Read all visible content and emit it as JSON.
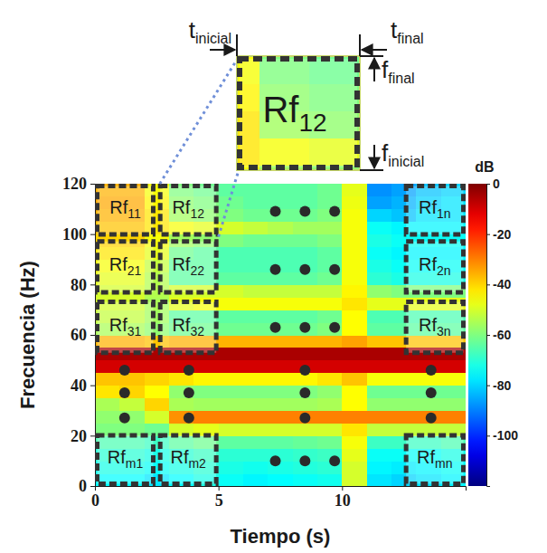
{
  "chart_data": {
    "type": "heatmap",
    "x_label": "Tiempo (s)",
    "y_label": "Frecuencia (Hz)",
    "xlim": [
      0,
      15
    ],
    "xticks": [
      0,
      5,
      10
    ],
    "ylim": [
      0,
      120
    ],
    "yticks": [
      0,
      20,
      40,
      60,
      80,
      100,
      120
    ],
    "x_bins": [
      0,
      1,
      2,
      3,
      4,
      5,
      6,
      7,
      8,
      9,
      10,
      11,
      12,
      13,
      14,
      15
    ],
    "y_bins": [
      0,
      5,
      10,
      15,
      20,
      25,
      30,
      35,
      40,
      45,
      50,
      55,
      60,
      65,
      70,
      75,
      80,
      85,
      90,
      95,
      100,
      105,
      110,
      115,
      120
    ],
    "z": [
      [
        -75,
        -75,
        -78,
        -75,
        -72,
        -74,
        -76,
        -75,
        -74,
        -73,
        -50,
        -78,
        -80,
        -78,
        -76
      ],
      [
        -72,
        -72,
        -74,
        -72,
        -70,
        -72,
        -73,
        -72,
        -71,
        -70,
        -50,
        -76,
        -77,
        -76,
        -74
      ],
      [
        -70,
        -70,
        -72,
        -70,
        -68,
        -70,
        -70,
        -70,
        -69,
        -68,
        -48,
        -74,
        -74,
        -74,
        -72
      ],
      [
        -66,
        -66,
        -68,
        -64,
        -62,
        -64,
        -64,
        -64,
        -63,
        -62,
        -46,
        -68,
        -68,
        -68,
        -66
      ],
      [
        -60,
        -60,
        -62,
        -50,
        -48,
        -50,
        -50,
        -50,
        -50,
        -50,
        -42,
        -52,
        -52,
        -52,
        -52
      ],
      [
        -58,
        -58,
        -50,
        -32,
        -30,
        -30,
        -30,
        -30,
        -30,
        -30,
        -30,
        -30,
        -30,
        -30,
        -30
      ],
      [
        -55,
        -52,
        -40,
        -55,
        -56,
        -56,
        -56,
        -56,
        -56,
        -55,
        -45,
        -58,
        -58,
        -58,
        -58
      ],
      [
        -42,
        -40,
        -45,
        -58,
        -60,
        -60,
        -60,
        -60,
        -60,
        -58,
        -45,
        -62,
        -62,
        -62,
        -62
      ],
      [
        -38,
        -38,
        -40,
        -42,
        -44,
        -44,
        -44,
        -44,
        -44,
        -42,
        -38,
        -46,
        -46,
        -46,
        -46
      ],
      [
        -10,
        -10,
        -10,
        -10,
        -10,
        -10,
        -10,
        -10,
        -10,
        -10,
        -10,
        -10,
        -10,
        -10,
        -10
      ],
      [
        -5,
        -5,
        -5,
        -5,
        -5,
        -5,
        -5,
        -5,
        -5,
        -5,
        -5,
        -5,
        -5,
        -5,
        -5
      ],
      [
        -36,
        -36,
        -38,
        -36,
        -36,
        -36,
        -36,
        -36,
        -36,
        -36,
        -34,
        -38,
        -38,
        -38,
        -38
      ],
      [
        -55,
        -55,
        -58,
        -62,
        -62,
        -62,
        -62,
        -62,
        -62,
        -60,
        -45,
        -64,
        -64,
        -64,
        -64
      ],
      [
        -52,
        -52,
        -56,
        -64,
        -64,
        -64,
        -64,
        -64,
        -64,
        -62,
        -45,
        -66,
        -66,
        -66,
        -66
      ],
      [
        -50,
        -50,
        -55,
        -48,
        -46,
        -46,
        -46,
        -46,
        -46,
        -46,
        -42,
        -48,
        -48,
        -48,
        -48
      ],
      [
        -50,
        -50,
        -54,
        -50,
        -50,
        -50,
        -52,
        -52,
        -52,
        -52,
        -44,
        -58,
        -60,
        -60,
        -60
      ],
      [
        -48,
        -48,
        -54,
        -64,
        -64,
        -64,
        -64,
        -64,
        -64,
        -62,
        -46,
        -70,
        -72,
        -72,
        -72
      ],
      [
        -46,
        -46,
        -52,
        -64,
        -64,
        -66,
        -66,
        -66,
        -66,
        -64,
        -46,
        -72,
        -74,
        -74,
        -74
      ],
      [
        -42,
        -42,
        -48,
        -62,
        -64,
        -66,
        -66,
        -66,
        -66,
        -64,
        -46,
        -74,
        -76,
        -76,
        -76
      ],
      [
        -40,
        -40,
        -46,
        -56,
        -58,
        -60,
        -62,
        -62,
        -62,
        -60,
        -46,
        -72,
        -74,
        -74,
        -74
      ],
      [
        -38,
        -38,
        -42,
        -46,
        -48,
        -50,
        -52,
        -54,
        -56,
        -56,
        -46,
        -74,
        -76,
        -76,
        -76
      ],
      [
        -36,
        -36,
        -42,
        -56,
        -58,
        -60,
        -62,
        -62,
        -62,
        -60,
        -46,
        -80,
        -82,
        -78,
        -78
      ],
      [
        -35,
        -35,
        -44,
        -58,
        -60,
        -62,
        -64,
        -64,
        -64,
        -62,
        -47,
        -86,
        -84,
        -80,
        -78
      ],
      [
        -36,
        -36,
        -46,
        -60,
        -62,
        -64,
        -64,
        -64,
        -64,
        -62,
        -48,
        -88,
        -86,
        -82,
        -80
      ]
    ],
    "colorbar": {
      "label": "dB",
      "range": [
        -120,
        0
      ],
      "ticks": [
        0,
        -20,
        -40,
        -60,
        -80,
        -100
      ]
    },
    "regions": [
      {
        "text": "Rf",
        "subscript": "11",
        "t": [
          0,
          2.45
        ],
        "f": [
          99,
          120
        ]
      },
      {
        "text": "Rf",
        "subscript": "12",
        "t": [
          2.55,
          5
        ],
        "f": [
          99,
          120
        ],
        "zoomed": true
      },
      {
        "text": "Rf",
        "subscript": "1n",
        "t": [
          12.5,
          15
        ],
        "f": [
          99,
          120
        ]
      },
      {
        "text": "Rf",
        "subscript": "21",
        "t": [
          0,
          2.45
        ],
        "f": [
          76,
          98
        ]
      },
      {
        "text": "Rf",
        "subscript": "22",
        "t": [
          2.55,
          5
        ],
        "f": [
          76,
          98
        ]
      },
      {
        "text": "Rf",
        "subscript": "2n",
        "t": [
          12.5,
          15
        ],
        "f": [
          76,
          98
        ]
      },
      {
        "text": "Rf",
        "subscript": "31",
        "t": [
          0,
          2.45
        ],
        "f": [
          52,
          74
        ]
      },
      {
        "text": "Rf",
        "subscript": "32",
        "t": [
          2.55,
          5
        ],
        "f": [
          52,
          74
        ]
      },
      {
        "text": "Rf",
        "subscript": "3n",
        "t": [
          12.5,
          15
        ],
        "f": [
          52,
          74
        ]
      },
      {
        "text": "Rf",
        "subscript": "m1",
        "t": [
          0,
          2.45
        ],
        "f": [
          0,
          21
        ]
      },
      {
        "text": "Rf",
        "subscript": "m2",
        "t": [
          2.55,
          5
        ],
        "f": [
          0,
          21
        ]
      },
      {
        "text": "Rf",
        "subscript": "mn",
        "t": [
          12.5,
          15
        ],
        "f": [
          0,
          21
        ]
      }
    ],
    "ellipsis_dots": [
      [
        7.3,
        109
      ],
      [
        8.5,
        109
      ],
      [
        9.7,
        109
      ],
      [
        7.3,
        86
      ],
      [
        8.5,
        86
      ],
      [
        9.7,
        86
      ],
      [
        7.3,
        63
      ],
      [
        8.5,
        63
      ],
      [
        9.7,
        63
      ],
      [
        1.2,
        46
      ],
      [
        1.2,
        37
      ],
      [
        1.2,
        27
      ],
      [
        3.8,
        46
      ],
      [
        3.8,
        37
      ],
      [
        3.8,
        27
      ],
      [
        8.5,
        46
      ],
      [
        8.5,
        37
      ],
      [
        8.5,
        27
      ],
      [
        13.6,
        46
      ],
      [
        13.6,
        37
      ],
      [
        13.6,
        27
      ],
      [
        7.3,
        10
      ],
      [
        8.5,
        10
      ],
      [
        9.7,
        10
      ]
    ],
    "inset_labels": {
      "t_inicial": {
        "text": "t",
        "subscript": "inicial"
      },
      "t_final": {
        "text": "t",
        "subscript": "final"
      },
      "f_final": {
        "text": "f",
        "subscript": "final"
      },
      "f_inicial": {
        "text": "f",
        "subscript": "inicial"
      }
    }
  }
}
